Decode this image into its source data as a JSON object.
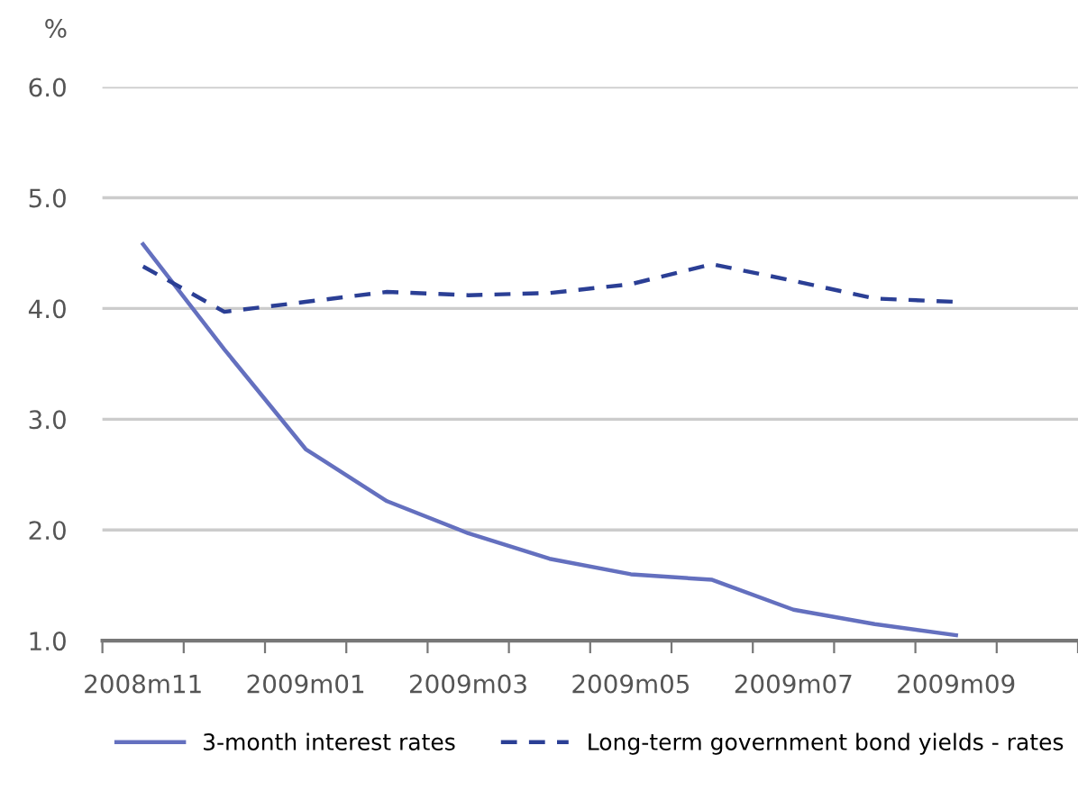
{
  "chart_data": {
    "type": "line",
    "ylabel": "%",
    "categories": [
      "2008m11",
      null,
      "2009m01",
      null,
      "2009m03",
      null,
      "2009m05",
      null,
      "2009m07",
      null,
      "2009m09",
      null
    ],
    "series": [
      {
        "name": "3-month interest rates",
        "color": "#6470bf",
        "line_style": "solid",
        "values": [
          4.58,
          3.63,
          2.73,
          2.26,
          1.97,
          1.74,
          1.6,
          1.55,
          1.28,
          1.15,
          1.05,
          null
        ]
      },
      {
        "name": "Long-term government bond yields - rates",
        "color": "#2b3f95",
        "line_style": "dashed",
        "values": [
          4.38,
          3.97,
          4.06,
          4.15,
          4.12,
          4.14,
          4.22,
          4.4,
          4.25,
          4.09,
          4.06,
          null
        ]
      }
    ],
    "ylim": [
      1.0,
      6.0
    ],
    "yticks": [
      {
        "value": 1.0,
        "label": "1.0"
      },
      {
        "value": 2.0,
        "label": "2.0"
      },
      {
        "value": 3.0,
        "label": "3.0"
      },
      {
        "value": 4.0,
        "label": "4.0"
      },
      {
        "value": 5.0,
        "label": "5.0"
      },
      {
        "value": 6.0,
        "label": "6.0"
      }
    ],
    "grid": "y",
    "legend": "bottom",
    "marker": "none"
  }
}
